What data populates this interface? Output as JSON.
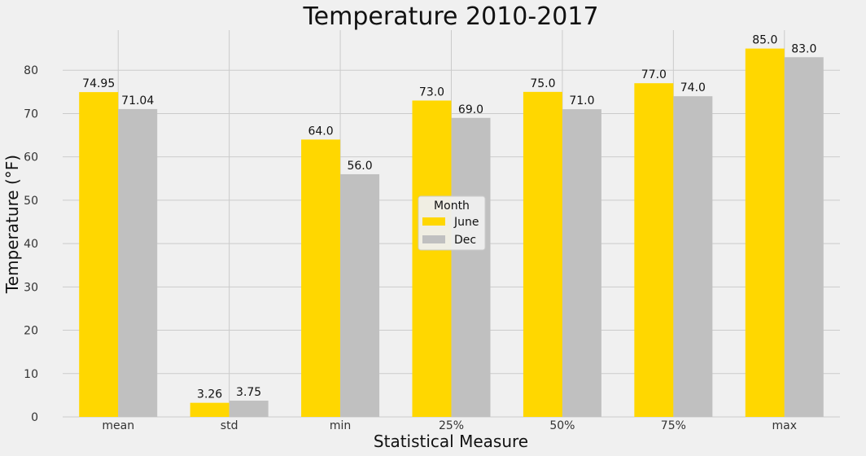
{
  "chart_data": {
    "type": "bar",
    "title": "Temperature 2010-2017",
    "xlabel": "Statistical Measure",
    "ylabel": "Temperature (°F)",
    "categories": [
      "mean",
      "std",
      "min",
      "25%",
      "50%",
      "75%",
      "max"
    ],
    "series": [
      {
        "name": "June",
        "color": "#FFD700",
        "values": [
          74.95,
          3.26,
          64.0,
          73.0,
          75.0,
          77.0,
          85.0
        ],
        "labels": [
          "74.95",
          "3.26",
          "64.0",
          "73.0",
          "75.0",
          "77.0",
          "85.0"
        ]
      },
      {
        "name": "Dec",
        "color": "#C0C0C0",
        "values": [
          71.04,
          3.75,
          56.0,
          69.0,
          71.0,
          74.0,
          83.0
        ],
        "labels": [
          "71.04",
          "3.75",
          "56.0",
          "69.0",
          "71.0",
          "74.0",
          "83.0"
        ]
      }
    ],
    "ylim": [
      0,
      89.25
    ],
    "yticks": [
      0,
      10,
      20,
      30,
      40,
      50,
      60,
      70,
      80
    ],
    "grid": true,
    "legend": {
      "title": "Month",
      "placement": "center"
    }
  }
}
